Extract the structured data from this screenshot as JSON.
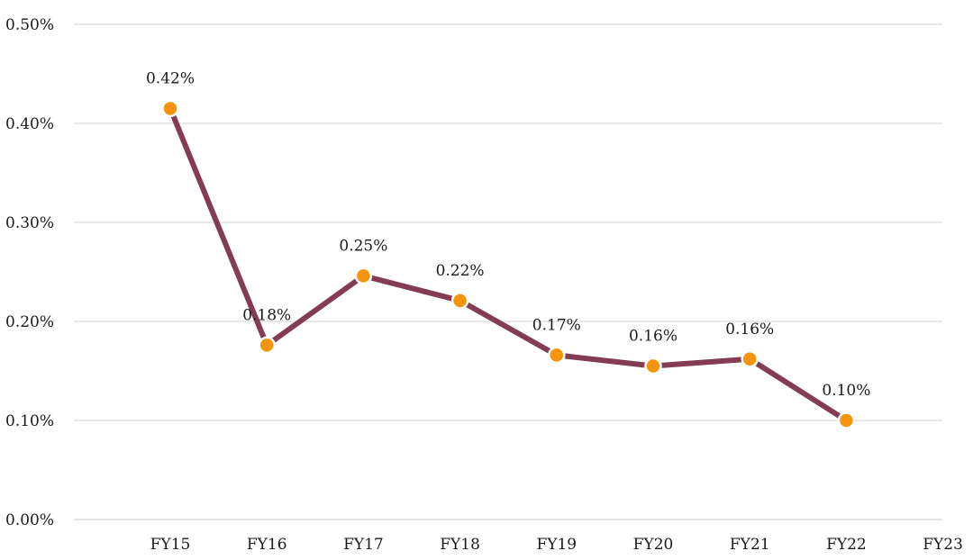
{
  "chart_data": {
    "type": "line",
    "title": "",
    "xlabel": "",
    "ylabel": "",
    "categories": [
      "FY15",
      "FY16",
      "FY17",
      "FY18",
      "FY19",
      "FY20",
      "FY21",
      "FY22",
      "FY23"
    ],
    "series": [
      {
        "values": [
          0.415,
          0.176,
          0.246,
          0.221,
          0.166,
          0.155,
          0.162,
          0.1,
          null
        ],
        "labels": [
          "0.42%",
          "0.18%",
          "0.25%",
          "0.22%",
          "0.17%",
          "0.16%",
          "0.16%",
          "0.10%",
          ""
        ]
      }
    ],
    "ylim": [
      0,
      0.5
    ],
    "yticks": [
      0,
      0.1,
      0.2,
      0.3,
      0.4,
      0.5
    ],
    "ytick_labels": [
      "0.00%",
      "0.10%",
      "0.20%",
      "0.30%",
      "0.40%",
      "0.50%"
    ],
    "grid": true,
    "legend": "none",
    "colors": {
      "line": "#833C51",
      "marker": "#F4940C"
    }
  }
}
